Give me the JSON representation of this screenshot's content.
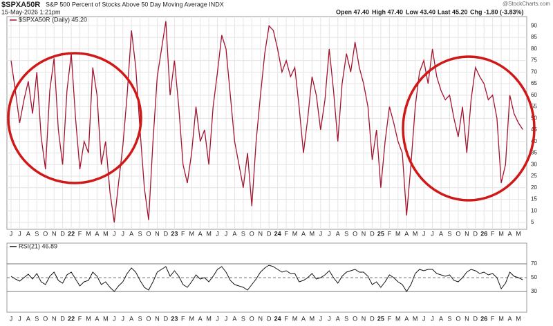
{
  "header": {
    "symbol": "$SPXA50R",
    "name": "S&P 500 Percent of Stocks Above 50 Day Moving Average INDX",
    "date": "15-May-2026 1:21pm",
    "open": "Open 47.40",
    "high": "High 47.40",
    "low": "Low 43.40",
    "last": "Last 45.20",
    "change": "Chg -1.80 (-3.83%)",
    "source": "@StockCharts.com"
  },
  "chart_data": [
    {
      "type": "line",
      "legend": "$SPXA50R (Daily) 45.20",
      "color": "#a3122e",
      "grid": true,
      "ylim": [
        2,
        94
      ],
      "yticks": [
        5,
        10,
        15,
        20,
        25,
        30,
        35,
        40,
        45,
        50,
        55,
        60,
        65,
        70,
        75,
        80,
        85,
        90
      ],
      "categories": [
        "J",
        null,
        "J",
        null,
        "A",
        null,
        "S",
        null,
        "O",
        null,
        "N",
        null,
        "D",
        null,
        "22",
        null,
        "F",
        null,
        "M",
        null,
        "A",
        null,
        "M",
        null,
        "J",
        null,
        "J",
        null,
        "A",
        null,
        "S",
        null,
        "O",
        null,
        "N",
        null,
        "D",
        null,
        "23",
        null,
        "F",
        null,
        "M",
        null,
        "A",
        null,
        "M",
        null,
        "J",
        null,
        "J",
        null,
        "A",
        null,
        "S",
        null,
        "O",
        null,
        "N",
        null,
        "D",
        null,
        "24",
        null,
        "F",
        null,
        "M",
        null,
        "A",
        null,
        "M",
        null,
        "J",
        null,
        "J",
        null,
        "A",
        null,
        "S",
        null,
        "O",
        null,
        "N",
        null,
        "D",
        null,
        "25",
        null,
        "F",
        null,
        "M",
        null,
        "A",
        null,
        "M",
        null,
        "J",
        null,
        "J",
        null,
        "A",
        null,
        "S",
        null,
        "O",
        null,
        "N",
        null,
        "D",
        null,
        "26",
        null,
        "F",
        null,
        "M",
        null,
        "A",
        null,
        "M",
        null
      ],
      "values": [
        75,
        62,
        48,
        58,
        66,
        52,
        70,
        42,
        28,
        62,
        76,
        45,
        30,
        62,
        78,
        50,
        28,
        40,
        35,
        72,
        60,
        30,
        40,
        18,
        5,
        22,
        38,
        60,
        88,
        72,
        45,
        20,
        6,
        40,
        68,
        80,
        92,
        60,
        75,
        55,
        30,
        22,
        35,
        55,
        40,
        45,
        30,
        55,
        70,
        86,
        80,
        60,
        40,
        30,
        20,
        35,
        12,
        40,
        60,
        78,
        90,
        88,
        80,
        70,
        75,
        68,
        72,
        55,
        35,
        50,
        68,
        60,
        45,
        58,
        80,
        62,
        40,
        65,
        78,
        70,
        83,
        72,
        65,
        55,
        32,
        45,
        20,
        40,
        55,
        48,
        40,
        35,
        8,
        30,
        55,
        70,
        75,
        65,
        80,
        68,
        62,
        58,
        60,
        50,
        42,
        55,
        35,
        58,
        72,
        68,
        65,
        58,
        60,
        50,
        22,
        30,
        60,
        52,
        48,
        45.2
      ]
    },
    {
      "type": "line",
      "legend": "RSI(21) 46.89",
      "color": "#111111",
      "ylim": [
        0,
        100
      ],
      "yticks": [
        30,
        50,
        70
      ],
      "categories": [
        "J",
        null,
        "J",
        null,
        "A",
        null,
        "S",
        null,
        "O",
        null,
        "N",
        null,
        "D",
        null,
        "22",
        null,
        "F",
        null,
        "M",
        null,
        "A",
        null,
        "M",
        null,
        "J",
        null,
        "J",
        null,
        "A",
        null,
        "S",
        null,
        "O",
        null,
        "N",
        null,
        "D",
        null,
        "23",
        null,
        "F",
        null,
        "M",
        null,
        "A",
        null,
        "M",
        null,
        "J",
        null,
        "J",
        null,
        "A",
        null,
        "S",
        null,
        "O",
        null,
        "N",
        null,
        "D",
        null,
        "24",
        null,
        "F",
        null,
        "M",
        null,
        "A",
        null,
        "M",
        null,
        "J",
        null,
        "J",
        null,
        "A",
        null,
        "S",
        null,
        "O",
        null,
        "N",
        null,
        "D",
        null,
        "25",
        null,
        "F",
        null,
        "M",
        null,
        "A",
        null,
        "M",
        null,
        "J",
        null,
        "J",
        null,
        "A",
        null,
        "S",
        null,
        "O",
        null,
        "N",
        null,
        "D",
        null,
        "26",
        null,
        "F",
        null,
        "M",
        null,
        "A",
        null,
        "M",
        null
      ],
      "values": [
        52,
        48,
        45,
        50,
        55,
        48,
        56,
        44,
        40,
        52,
        58,
        46,
        42,
        54,
        58,
        48,
        38,
        44,
        46,
        58,
        52,
        40,
        44,
        36,
        30,
        38,
        44,
        56,
        64,
        58,
        46,
        36,
        32,
        44,
        58,
        62,
        66,
        52,
        60,
        52,
        40,
        36,
        44,
        54,
        48,
        50,
        44,
        52,
        62,
        66,
        58,
        46,
        40,
        38,
        36,
        32,
        40,
        48,
        58,
        64,
        68,
        66,
        62,
        58,
        60,
        56,
        56,
        44,
        46,
        50,
        56,
        48,
        50,
        54,
        60,
        50,
        42,
        52,
        58,
        60,
        62,
        58,
        58,
        52,
        40,
        44,
        36,
        44,
        54,
        50,
        44,
        40,
        30,
        40,
        56,
        62,
        60,
        62,
        62,
        56,
        54,
        52,
        54,
        46,
        44,
        50,
        58,
        62,
        60,
        56,
        58,
        54,
        56,
        50,
        34,
        42,
        58,
        52,
        50,
        46.89
      ]
    }
  ]
}
